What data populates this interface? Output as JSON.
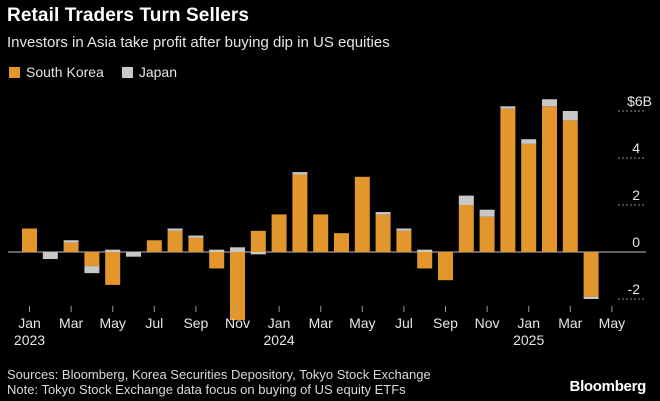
{
  "header": {
    "title": "Retail Traders Turn Sellers",
    "subtitle": "Investors in Asia take profit after buying dip in US equities"
  },
  "legend": {
    "items": [
      {
        "label": "South Korea",
        "color": "#e2962c"
      },
      {
        "label": "Japan",
        "color": "#c8c8c8"
      }
    ]
  },
  "chart_data": {
    "type": "bar",
    "stacked": true,
    "title": "Retail Traders Turn Sellers",
    "subtitle": "Investors in Asia take profit after buying dip in US equities",
    "ylabel": "$6B",
    "y_unit_label": "$6B",
    "ylim": [
      -3,
      6
    ],
    "y_ticks": [
      -2,
      0,
      2,
      4
    ],
    "y_tick_labels": [
      "-2",
      "0",
      "2",
      "4"
    ],
    "categories": [
      "Jan 2023",
      "Feb 2023",
      "Mar 2023",
      "Apr 2023",
      "May 2023",
      "Jun 2023",
      "Jul 2023",
      "Aug 2023",
      "Sep 2023",
      "Oct 2023",
      "Nov 2023",
      "Dec 2023",
      "Jan 2024",
      "Feb 2024",
      "Mar 2024",
      "Apr 2024",
      "May 2024",
      "Jun 2024",
      "Jul 2024",
      "Aug 2024",
      "Sep 2024",
      "Oct 2024",
      "Nov 2024",
      "Dec 2024",
      "Jan 2025",
      "Feb 2025",
      "Mar 2025",
      "Apr 2025",
      "May 2025"
    ],
    "x_tick_labels": [
      {
        "index": 0,
        "label": "Jan",
        "year": "2023"
      },
      {
        "index": 2,
        "label": "Mar"
      },
      {
        "index": 4,
        "label": "May"
      },
      {
        "index": 6,
        "label": "Jul"
      },
      {
        "index": 8,
        "label": "Sep"
      },
      {
        "index": 10,
        "label": "Nov"
      },
      {
        "index": 12,
        "label": "Jan",
        "year": "2024"
      },
      {
        "index": 14,
        "label": "Mar"
      },
      {
        "index": 16,
        "label": "May"
      },
      {
        "index": 18,
        "label": "Jul"
      },
      {
        "index": 20,
        "label": "Sep"
      },
      {
        "index": 22,
        "label": "Nov"
      },
      {
        "index": 24,
        "label": "Jan",
        "year": "2025"
      },
      {
        "index": 26,
        "label": "Mar"
      },
      {
        "index": 28,
        "label": "May"
      }
    ],
    "series": [
      {
        "name": "South Korea",
        "color": "#e2962c",
        "values": [
          1.0,
          0.0,
          0.4,
          -0.6,
          -1.4,
          0.0,
          0.5,
          0.9,
          0.6,
          -0.7,
          -2.9,
          0.9,
          1.6,
          3.3,
          1.6,
          0.8,
          3.2,
          1.6,
          0.9,
          -0.7,
          -1.2,
          2.0,
          1.5,
          6.1,
          4.6,
          6.2,
          5.6,
          -1.9,
          0.0
        ]
      },
      {
        "name": "Japan",
        "color": "#c8c8c8",
        "values": [
          0.0,
          -0.3,
          0.1,
          -0.3,
          0.1,
          -0.2,
          0.0,
          0.1,
          0.1,
          0.1,
          0.2,
          -0.1,
          0.0,
          0.1,
          0.0,
          0.0,
          0.0,
          0.1,
          0.1,
          0.1,
          0.0,
          0.4,
          0.3,
          0.1,
          0.2,
          0.3,
          0.4,
          -0.1,
          0.0
        ]
      }
    ]
  },
  "footer": {
    "sources": "Sources: Bloomberg, Korea Securities Depository, Tokyo Stock Exchange",
    "note": "Note: Tokyo Stock Exchange data focus on buying of US equity ETFs",
    "brand": "Bloomberg"
  }
}
